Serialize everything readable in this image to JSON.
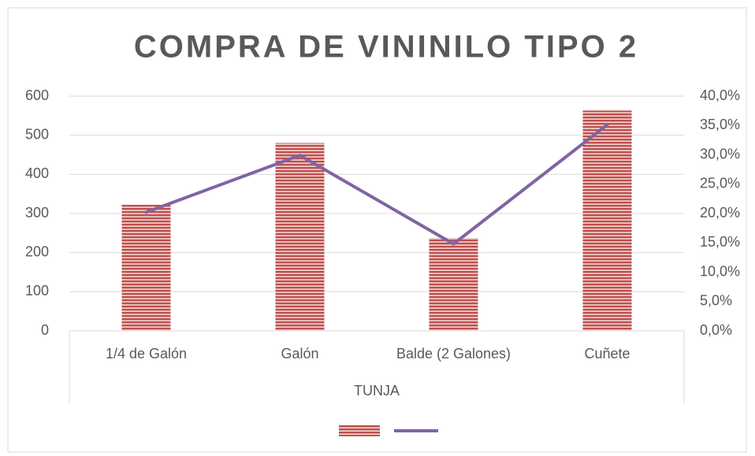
{
  "chart_data": {
    "type": "bar",
    "title": "COMPRA DE VININILO TIPO 2",
    "xlabel": "TUNJA",
    "categories": [
      "1/4 de Galón",
      "Galón",
      "Balde (2 Galones)",
      "Cuñete"
    ],
    "series": [
      {
        "type": "bar",
        "color": "#c0504d",
        "values": [
          322,
          480,
          237,
          563
        ]
      },
      {
        "type": "line",
        "color": "#8064a2",
        "axis": "y2",
        "values": [
          20.2,
          29.9,
          14.8,
          35.1
        ]
      }
    ],
    "ylim": [
      0,
      600
    ],
    "yticks": [
      0,
      100,
      200,
      300,
      400,
      500,
      600
    ],
    "y2lim": [
      0,
      40
    ],
    "y2ticks": [
      {
        "value": 0,
        "label": "0,0%"
      },
      {
        "value": 5,
        "label": "5,0%"
      },
      {
        "value": 10,
        "label": "10,0%"
      },
      {
        "value": 15,
        "label": "15,0%"
      },
      {
        "value": 20,
        "label": "20,0%"
      },
      {
        "value": 25,
        "label": "25,0%"
      },
      {
        "value": 30,
        "label": "30,0%"
      },
      {
        "value": 35,
        "label": "35,0%"
      },
      {
        "value": 40,
        "label": "40,0%"
      }
    ],
    "grid": true,
    "legend": "bottom"
  }
}
